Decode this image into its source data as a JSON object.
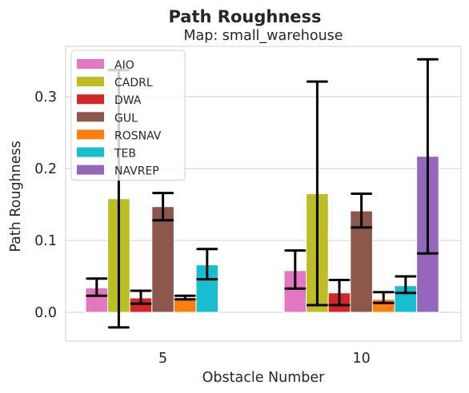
{
  "chart_data": {
    "type": "bar",
    "title": "Path Roughness",
    "subtitle": "Map: small_warehouse",
    "xlabel": "Obstacle Number",
    "ylabel": "Path Roughness",
    "categories": [
      "5",
      "10"
    ],
    "ylim": [
      -0.04,
      0.37
    ],
    "yticks": [
      0.0,
      0.1,
      0.2,
      0.3
    ],
    "ytick_labels": [
      "0.0",
      "0.1",
      "0.2",
      "0.3"
    ],
    "grid": true,
    "legend_position": "upper-left",
    "series": [
      {
        "name": "AIO",
        "color": "#e377c2",
        "values": [
          0.034,
          0.058
        ],
        "err_low": [
          0.023,
          0.033
        ],
        "err_high": [
          0.047,
          0.086
        ]
      },
      {
        "name": "CADRL",
        "color": "#bcbd22",
        "values": [
          0.158,
          0.165
        ],
        "err_low": [
          -0.021,
          0.01
        ],
        "err_high": [
          0.337,
          0.321
        ]
      },
      {
        "name": "DWA",
        "color": "#d62728",
        "values": [
          0.02,
          0.027
        ],
        "err_low": [
          0.012,
          0.01
        ],
        "err_high": [
          0.03,
          0.045
        ]
      },
      {
        "name": "GUL",
        "color": "#8c564b",
        "values": [
          0.147,
          0.141
        ],
        "err_low": [
          0.128,
          0.118
        ],
        "err_high": [
          0.166,
          0.165
        ]
      },
      {
        "name": "ROSNAV",
        "color": "#ff7f0e",
        "values": [
          0.02,
          0.018
        ],
        "err_low": [
          0.018,
          0.013
        ],
        "err_high": [
          0.023,
          0.028
        ]
      },
      {
        "name": "TEB",
        "color": "#17becf",
        "values": [
          0.066,
          0.037
        ],
        "err_low": [
          0.046,
          0.027
        ],
        "err_high": [
          0.088,
          0.05
        ]
      },
      {
        "name": "NAVREP",
        "color": "#9467bd",
        "values": [
          null,
          0.217
        ],
        "err_low": [
          null,
          0.082
        ],
        "err_high": [
          null,
          0.352
        ]
      }
    ]
  }
}
